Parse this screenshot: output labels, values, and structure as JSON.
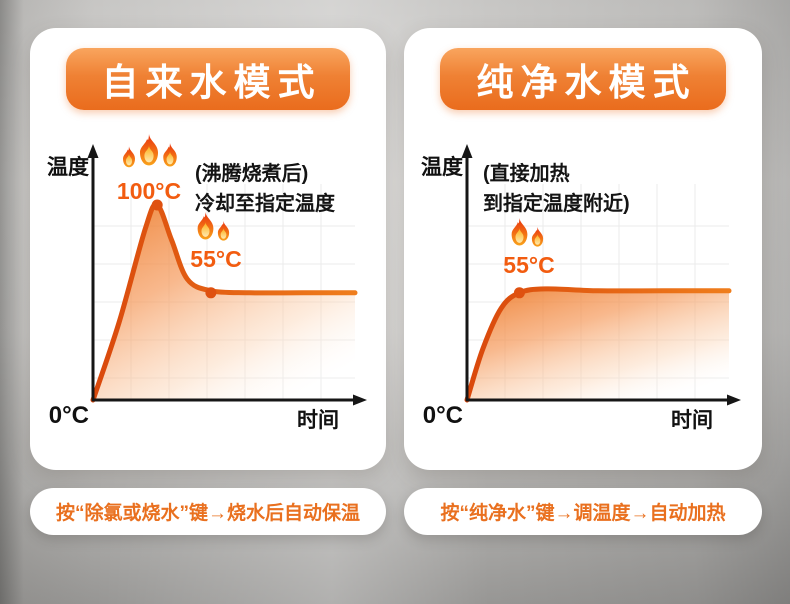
{
  "theme": {
    "accent_orange": "#ec6f1f",
    "curve_color": "#e2540e",
    "temp_label_color": "#f25c10",
    "caption_color": "#e9701f",
    "card_bg": "#ffffff",
    "page_bg": "#c7c6c4"
  },
  "icons": {
    "flame_clusters": [
      {
        "location": "above-100C-left-chart",
        "count": 3
      },
      {
        "location": "above-55C-left-chart",
        "count": 2
      },
      {
        "location": "above-55C-right-chart",
        "count": 2
      }
    ]
  },
  "panels": [
    {
      "title": "自来水模式",
      "y_axis_label": "温度",
      "x_axis_label": "时间",
      "origin_label": "0°C",
      "peak_label": "100°C",
      "plateau_label": "55°C",
      "annotation_line1": "(沸腾烧煮后)",
      "annotation_line2": "冷却至指定温度",
      "caption": "按“除氯或烧水”键→烧水后自动保温"
    },
    {
      "title": "纯净水模式",
      "y_axis_label": "温度",
      "x_axis_label": "时间",
      "origin_label": "0°C",
      "plateau_label": "55°C",
      "annotation_line1": "(直接加热",
      "annotation_line2": "到指定温度附近)",
      "caption": "按“纯净水”键→调温度→自动加热"
    }
  ],
  "chart_data": [
    {
      "type": "line",
      "title": "自来水模式 (tap water mode): boil to 100°C then auto keep-warm at 55°C",
      "xlabel": "时间",
      "ylabel": "温度",
      "ylim": [
        0,
        120
      ],
      "x_range": [
        0,
        1
      ],
      "grid": true,
      "legend": false,
      "series": [
        {
          "name": "水温",
          "x": [
            0,
            0.1,
            0.2,
            0.245,
            0.3,
            0.36,
            0.45,
            0.6,
            0.8,
            1.0
          ],
          "values": [
            0,
            40,
            88,
            100,
            82,
            62,
            56,
            55,
            55,
            55
          ]
        }
      ],
      "annotations": [
        {
          "x": 0.245,
          "y": 100,
          "label": "100°C"
        },
        {
          "x": 0.45,
          "y": 55,
          "label": "55°C"
        }
      ]
    },
    {
      "type": "line",
      "title": "纯净水模式 (purified water mode): heat directly to ~55°C",
      "xlabel": "时间",
      "ylabel": "温度",
      "ylim": [
        0,
        120
      ],
      "x_range": [
        0,
        1
      ],
      "grid": true,
      "legend": false,
      "series": [
        {
          "name": "水温",
          "x": [
            0,
            0.06,
            0.13,
            0.2,
            0.3,
            0.5,
            0.75,
            1.0
          ],
          "values": [
            0,
            26,
            47,
            55,
            57,
            56,
            56,
            56
          ]
        }
      ],
      "annotations": [
        {
          "x": 0.2,
          "y": 55,
          "label": "55°C"
        }
      ]
    }
  ]
}
